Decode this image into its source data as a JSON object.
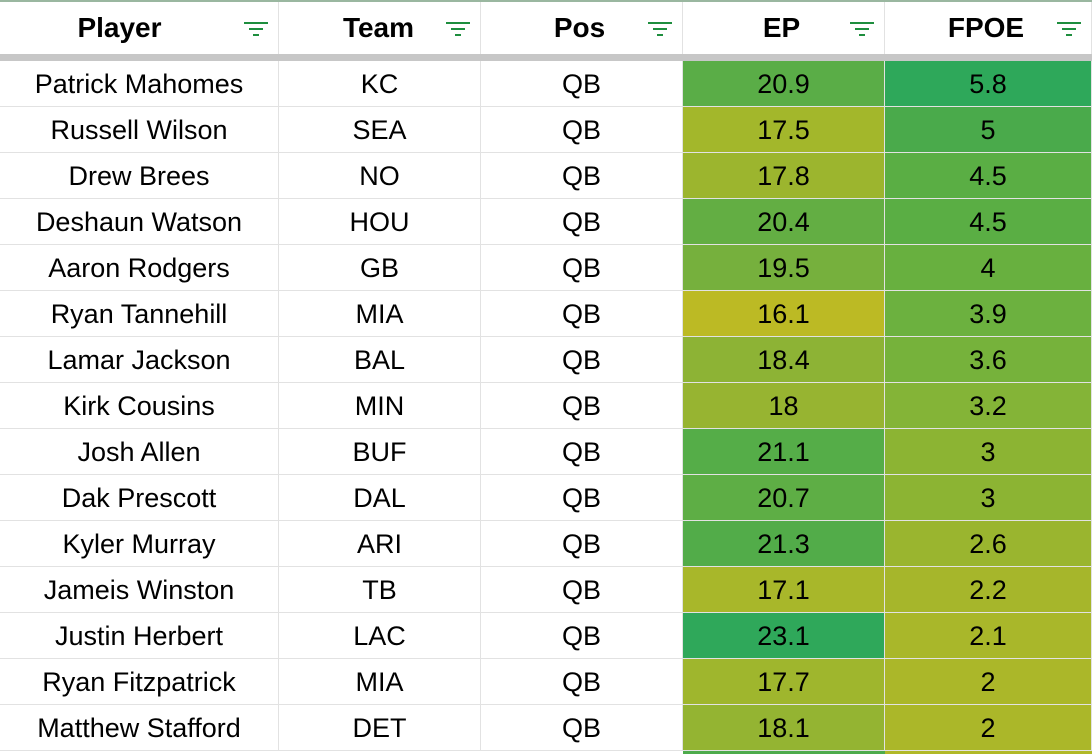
{
  "headers": {
    "player": "Player",
    "team": "Team",
    "pos": "Pos",
    "ep": "EP",
    "fpoe": "FPOE"
  },
  "rows": [
    {
      "player": "Patrick Mahomes",
      "team": "KC",
      "pos": "QB",
      "ep": "20.9",
      "fpoe": "5.8",
      "ep_color": "#5aad47",
      "fpoe_color": "#2ea85a"
    },
    {
      "player": "Russell Wilson",
      "team": "SEA",
      "pos": "QB",
      "ep": "17.5",
      "fpoe": "5",
      "ep_color": "#a3b72b",
      "fpoe_color": "#4aaa4b"
    },
    {
      "player": "Drew Brees",
      "team": "NO",
      "pos": "QB",
      "ep": "17.8",
      "fpoe": "4.5",
      "ep_color": "#9cb52e",
      "fpoe_color": "#5aae44"
    },
    {
      "player": "Deshaun Watson",
      "team": "HOU",
      "pos": "QB",
      "ep": "20.4",
      "fpoe": "4.5",
      "ep_color": "#63ae43",
      "fpoe_color": "#5aae44"
    },
    {
      "player": "Aaron Rodgers",
      "team": "GB",
      "pos": "QB",
      "ep": "19.5",
      "fpoe": "4",
      "ep_color": "#76b03d",
      "fpoe_color": "#68b03f"
    },
    {
      "player": "Ryan Tannehill",
      "team": "MIA",
      "pos": "QB",
      "ep": "16.1",
      "fpoe": "3.9",
      "ep_color": "#bcba24",
      "fpoe_color": "#6cb13f"
    },
    {
      "player": "Lamar Jackson",
      "team": "BAL",
      "pos": "QB",
      "ep": "18.4",
      "fpoe": "3.6",
      "ep_color": "#8db335",
      "fpoe_color": "#76b23b"
    },
    {
      "player": "Kirk Cousins",
      "team": "MIN",
      "pos": "QB",
      "ep": "18",
      "fpoe": "3.2",
      "ep_color": "#97b431",
      "fpoe_color": "#84b437"
    },
    {
      "player": "Josh Allen",
      "team": "BUF",
      "pos": "QB",
      "ep": "21.1",
      "fpoe": "3",
      "ep_color": "#55ad48",
      "fpoe_color": "#8cb433"
    },
    {
      "player": "Dak Prescott",
      "team": "DAL",
      "pos": "QB",
      "ep": "20.7",
      "fpoe": "3",
      "ep_color": "#5eae45",
      "fpoe_color": "#8cb433"
    },
    {
      "player": "Kyler Murray",
      "team": "ARI",
      "pos": "QB",
      "ep": "21.3",
      "fpoe": "2.6",
      "ep_color": "#52ac49",
      "fpoe_color": "#9ab52f"
    },
    {
      "player": "Jameis Winston",
      "team": "TB",
      "pos": "QB",
      "ep": "17.1",
      "fpoe": "2.2",
      "ep_color": "#a8b72a",
      "fpoe_color": "#a6b62b"
    },
    {
      "player": "Justin Herbert",
      "team": "LAC",
      "pos": "QB",
      "ep": "23.1",
      "fpoe": "2.1",
      "ep_color": "#2fa85a",
      "fpoe_color": "#a9b72a"
    },
    {
      "player": "Ryan Fitzpatrick",
      "team": "MIA",
      "pos": "QB",
      "ep": "17.7",
      "fpoe": "2",
      "ep_color": "#9fb62d",
      "fpoe_color": "#abb729"
    },
    {
      "player": "Matthew Stafford",
      "team": "DET",
      "pos": "QB",
      "ep": "18.1",
      "fpoe": "2",
      "ep_color": "#94b432",
      "fpoe_color": "#abb729"
    }
  ],
  "next_row_colors": {
    "ep": "#4dab4c",
    "fpoe": "#b0b828"
  }
}
